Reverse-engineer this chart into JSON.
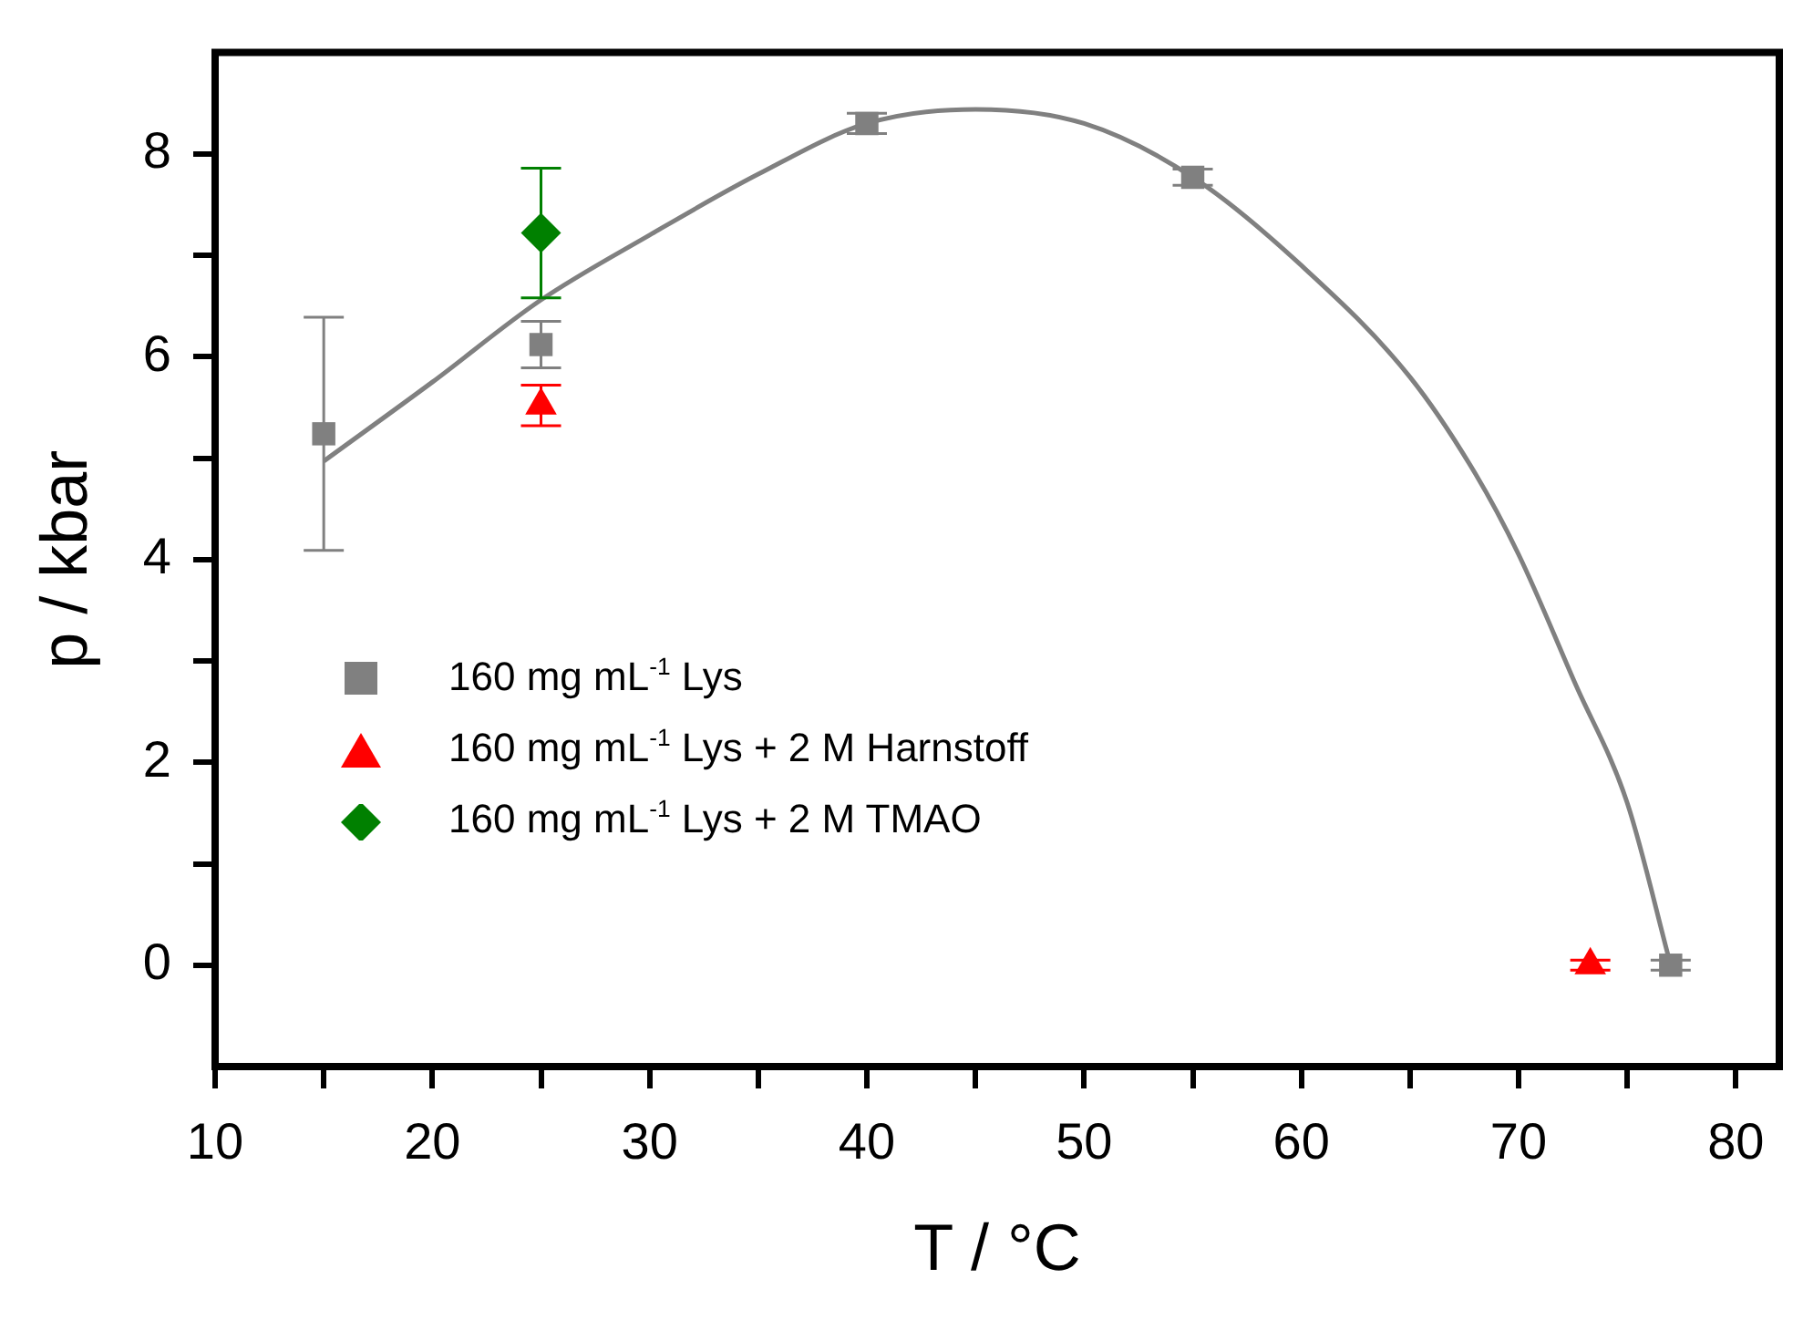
{
  "chart_data": {
    "type": "scatter",
    "xlabel": "T / °C",
    "ylabel": "p / kbar",
    "xlim": [
      10,
      82
    ],
    "xticks": [
      10,
      {
        "value": 15,
        "label": null
      },
      20,
      {
        "value": 25,
        "label": null
      },
      30,
      {
        "value": 35,
        "label": null
      },
      40,
      {
        "value": 45,
        "label": null
      },
      50,
      {
        "value": 55,
        "label": null
      },
      60,
      {
        "value": 65,
        "label": null
      },
      70,
      {
        "value": 75,
        "label": null
      },
      80
    ],
    "ylim": [
      -1,
      9
    ],
    "yticks": [
      0,
      {
        "value": 1,
        "label": null
      },
      2,
      {
        "value": 3,
        "label": null
      },
      4,
      {
        "value": 5,
        "label": null
      },
      6,
      {
        "value": 7,
        "label": null
      },
      8
    ],
    "grid": false,
    "legend": "bottom left",
    "series": [
      {
        "name": "160 mg mL$^{-1}$ Lys",
        "color": "#808080",
        "marker": "square",
        "x": [
          15,
          25,
          40,
          55,
          77
        ],
        "values": [
          5.24,
          6.12,
          8.3,
          7.77,
          0
        ],
        "errors": [
          1.15,
          0.23,
          0.1,
          0.08,
          0.05
        ]
      },
      {
        "name": "160 mg mL$^{-1}$ Lys + 2 M Harnstoff",
        "color": "#ff0000",
        "marker": "triangle",
        "x": [
          25,
          73.3
        ],
        "values": [
          5.52,
          0
        ],
        "errors": [
          0.2,
          0.05
        ]
      },
      {
        "name": "160 mg mL$^{-1}$ Lys + 2 M TMAO",
        "color": "#008000",
        "marker": "diamond",
        "x": [
          25
        ],
        "values": [
          7.22
        ],
        "errors": [
          0.64
        ]
      },
      {
        "type": "line",
        "color": "#808080",
        "marker": "none",
        "x": [
          15,
          20,
          25,
          30,
          35,
          40,
          45,
          50,
          55,
          60,
          65,
          68,
          70,
          72.6,
          75,
          77
        ],
        "values": [
          4.97,
          5.75,
          6.56,
          7.2,
          7.8,
          8.3,
          8.44,
          8.3,
          7.77,
          6.9,
          5.8,
          4.85,
          4.05,
          2.78,
          1.6,
          0
        ]
      }
    ]
  }
}
